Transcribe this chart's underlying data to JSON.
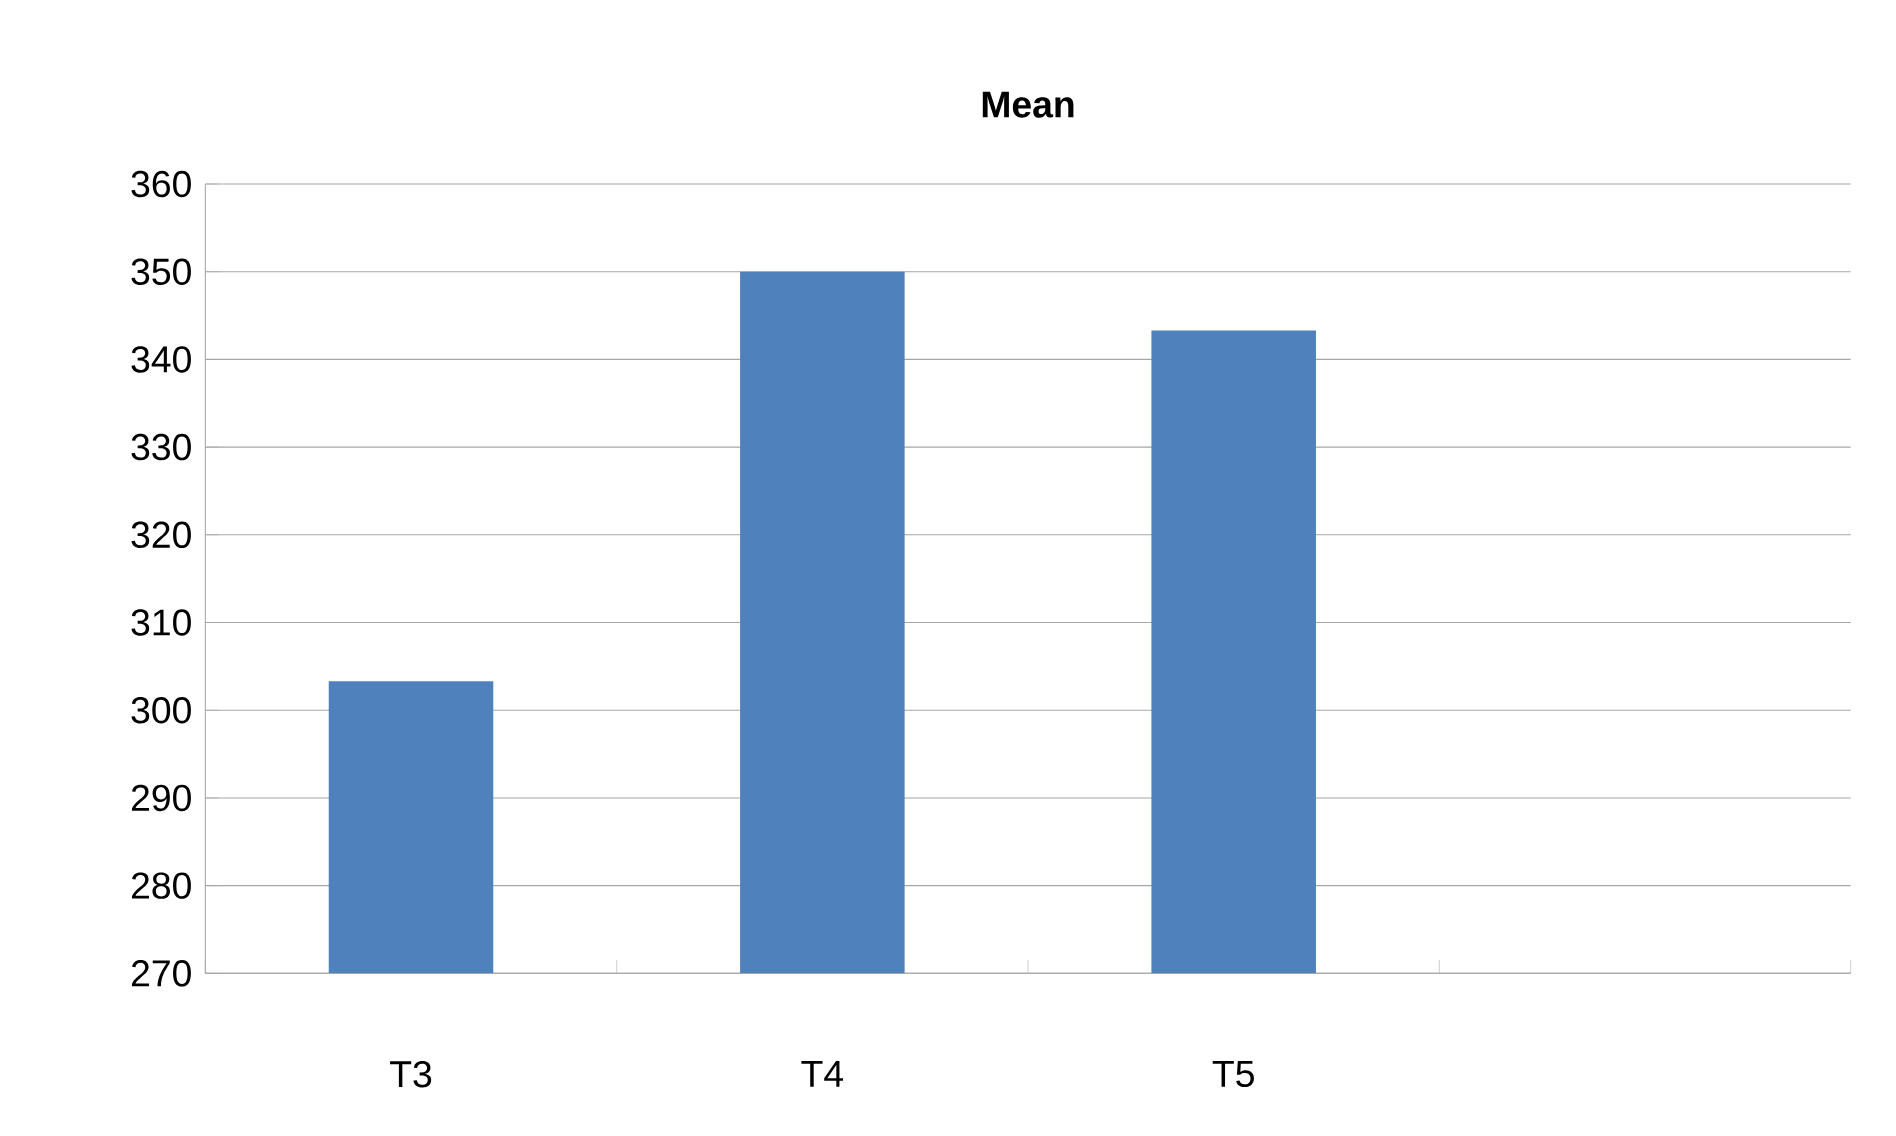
{
  "chart_data": {
    "type": "bar",
    "title": "**Mean**",
    "categories": [
      "T3",
      "T4",
      "T5",
      null
    ],
    "values": [
      303.3,
      350,
      343.3,
      null
    ],
    "color": "#4f81bd",
    "ylim": [
      270,
      360
    ],
    "yticks": [
      270,
      280,
      290,
      300,
      310,
      320,
      330,
      340,
      350,
      360
    ],
    "grid": "y"
  }
}
